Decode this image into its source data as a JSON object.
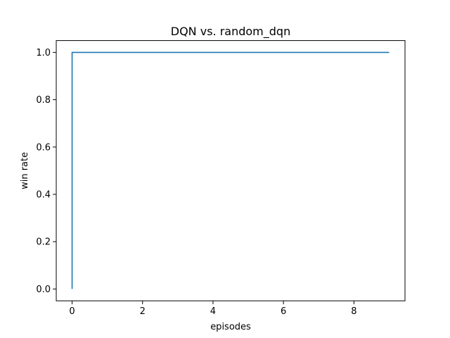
{
  "chart_data": {
    "type": "line",
    "title": "DQN vs. random_dqn",
    "xlabel": "episodes",
    "ylabel": "win rate",
    "xlim": [
      -0.45,
      9.45
    ],
    "ylim": [
      -0.05,
      1.05
    ],
    "xticks": [
      0,
      2,
      4,
      6,
      8
    ],
    "yticks": [
      0.0,
      0.2,
      0.4,
      0.6,
      0.8,
      1.0
    ],
    "xtick_labels": [
      "0",
      "2",
      "4",
      "6",
      "8"
    ],
    "ytick_labels": [
      "0.0",
      "0.2",
      "0.4",
      "0.6",
      "0.8",
      "1.0"
    ],
    "grid": false,
    "legend": false,
    "series": [
      {
        "color": "#1f77b4",
        "points": [
          [
            0,
            0.0
          ],
          [
            0,
            1.0
          ],
          [
            1,
            1.0
          ],
          [
            2,
            1.0
          ],
          [
            3,
            1.0
          ],
          [
            4,
            1.0
          ],
          [
            5,
            1.0
          ],
          [
            6,
            1.0
          ],
          [
            7,
            1.0
          ],
          [
            8,
            1.0
          ],
          [
            9,
            1.0
          ]
        ]
      }
    ]
  }
}
